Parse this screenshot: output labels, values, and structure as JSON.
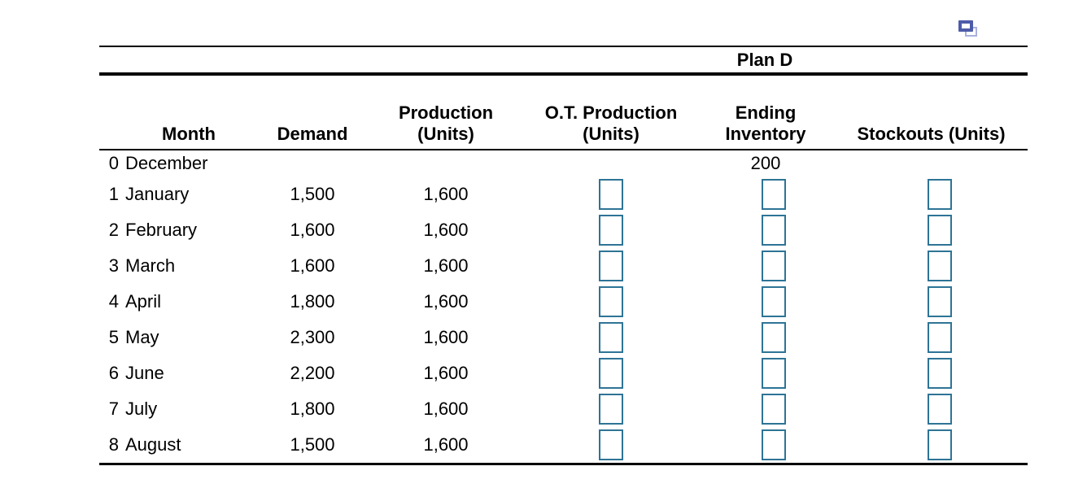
{
  "colors": {
    "input_border": "#2e7496",
    "icon_front": "#4d5ca9",
    "icon_back": "#a9b1dc",
    "text": "#000000"
  },
  "popout": {
    "icon": "popout-icon"
  },
  "table": {
    "title": "Plan D",
    "headers": {
      "month": "Month",
      "demand": "Demand",
      "production_line1": "Production",
      "production_line2": "(Units)",
      "ot_line1": "O.T. Production",
      "ot_line2": "(Units)",
      "ending_line1": "Ending",
      "ending_line2": "Inventory",
      "stockouts": "Stockouts (Units)"
    },
    "input_default_value": "",
    "rows": [
      {
        "index": "0",
        "month": "December",
        "demand": "",
        "production": "",
        "ending": "200"
      },
      {
        "index": "1",
        "month": "January",
        "demand": "1,500",
        "production": "1,600"
      },
      {
        "index": "2",
        "month": "February",
        "demand": "1,600",
        "production": "1,600"
      },
      {
        "index": "3",
        "month": "March",
        "demand": "1,600",
        "production": "1,600"
      },
      {
        "index": "4",
        "month": "April",
        "demand": "1,800",
        "production": "1,600"
      },
      {
        "index": "5",
        "month": "May",
        "demand": "2,300",
        "production": "1,600"
      },
      {
        "index": "6",
        "month": "June",
        "demand": "2,200",
        "production": "1,600"
      },
      {
        "index": "7",
        "month": "July",
        "demand": "1,800",
        "production": "1,600"
      },
      {
        "index": "8",
        "month": "August",
        "demand": "1,500",
        "production": "1,600"
      }
    ]
  }
}
